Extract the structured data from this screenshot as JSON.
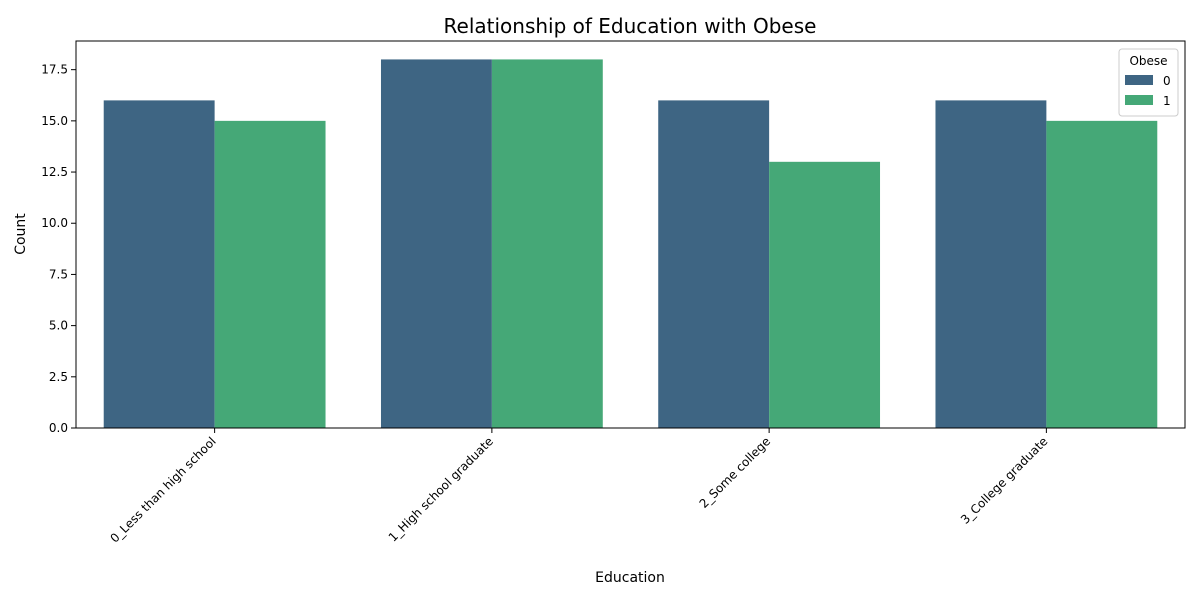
{
  "chart_data": {
    "type": "bar",
    "title": "Relationship of Education with Obese",
    "xlabel": "Education",
    "ylabel": "Count",
    "categories": [
      "0_Less than high school",
      "1_High school graduate",
      "2_Some college",
      "3_College graduate"
    ],
    "series": [
      {
        "name": "0",
        "values": [
          16,
          18,
          16,
          16
        ],
        "color": "#3e6583"
      },
      {
        "name": "1",
        "values": [
          15,
          18,
          13,
          15
        ],
        "color": "#45a877"
      }
    ],
    "ylim": [
      0,
      18.9
    ],
    "yticks": [
      "0.0",
      "2.5",
      "5.0",
      "7.5",
      "10.0",
      "12.5",
      "15.0",
      "17.5"
    ],
    "legend": {
      "title": "Obese",
      "position": "top-right"
    },
    "grid": false
  }
}
